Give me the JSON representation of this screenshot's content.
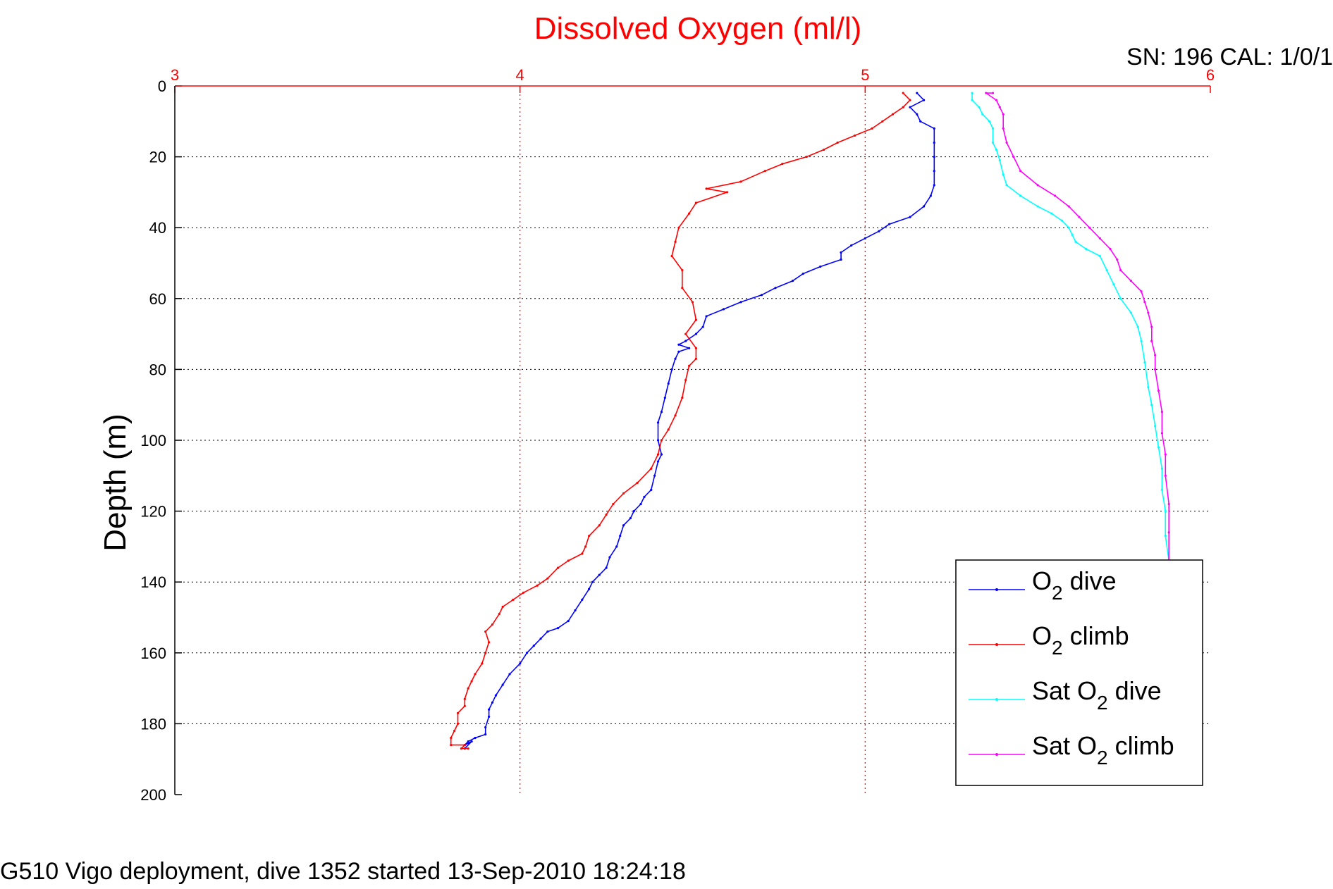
{
  "chart_data": {
    "type": "line",
    "title": "Dissolved Oxygen (ml/l)",
    "subtitle": "SN: 196  CAL: 1/0/1",
    "footer": "G510 Vigo deployment, dive 1352 started 13-Sep-2010 18:24:18",
    "xlabel": "",
    "ylabel": "Depth (m)",
    "xlim": [
      3,
      6
    ],
    "ylim": [
      0,
      200
    ],
    "y_reversed": true,
    "x_axis_position": "top",
    "x_ticks": [
      "3",
      "4",
      "5",
      "6"
    ],
    "y_ticks": [
      "0",
      "20",
      "40",
      "60",
      "80",
      "100",
      "120",
      "140",
      "160",
      "180",
      "200"
    ],
    "grid": true,
    "legend_position": "bottom-right",
    "x_axis_color": "#ff0000",
    "series": [
      {
        "name": "O₂ dive",
        "color": "#0000ff",
        "points": [
          [
            5.15,
            2
          ],
          [
            5.17,
            4
          ],
          [
            5.13,
            6
          ],
          [
            5.15,
            8
          ],
          [
            5.16,
            10
          ],
          [
            5.2,
            12
          ],
          [
            5.2,
            16
          ],
          [
            5.2,
            20
          ],
          [
            5.2,
            24
          ],
          [
            5.2,
            28
          ],
          [
            5.19,
            31
          ],
          [
            5.17,
            34
          ],
          [
            5.13,
            37
          ],
          [
            5.07,
            39
          ],
          [
            5.04,
            41
          ],
          [
            5.0,
            43
          ],
          [
            4.96,
            45
          ],
          [
            4.93,
            47
          ],
          [
            4.93,
            49
          ],
          [
            4.87,
            51
          ],
          [
            4.82,
            53
          ],
          [
            4.79,
            55
          ],
          [
            4.74,
            57
          ],
          [
            4.7,
            59
          ],
          [
            4.64,
            61
          ],
          [
            4.59,
            63
          ],
          [
            4.54,
            65
          ],
          [
            4.53,
            68
          ],
          [
            4.51,
            70
          ],
          [
            4.48,
            72
          ],
          [
            4.46,
            73
          ],
          [
            4.49,
            74
          ],
          [
            4.46,
            75
          ],
          [
            4.45,
            77
          ],
          [
            4.44,
            80
          ],
          [
            4.43,
            84
          ],
          [
            4.42,
            88
          ],
          [
            4.41,
            92
          ],
          [
            4.4,
            95
          ],
          [
            4.4,
            100
          ],
          [
            4.41,
            104
          ],
          [
            4.4,
            106
          ],
          [
            4.39,
            110
          ],
          [
            4.38,
            114
          ],
          [
            4.36,
            116
          ],
          [
            4.35,
            118
          ],
          [
            4.33,
            120
          ],
          [
            4.32,
            122
          ],
          [
            4.3,
            124
          ],
          [
            4.29,
            127
          ],
          [
            4.28,
            130
          ],
          [
            4.26,
            133
          ],
          [
            4.25,
            136
          ],
          [
            4.23,
            138
          ],
          [
            4.21,
            140
          ],
          [
            4.2,
            142
          ],
          [
            4.18,
            145
          ],
          [
            4.16,
            148
          ],
          [
            4.14,
            151
          ],
          [
            4.11,
            153
          ],
          [
            4.08,
            154
          ],
          [
            4.06,
            156
          ],
          [
            4.04,
            158
          ],
          [
            4.02,
            160
          ],
          [
            4.0,
            163
          ],
          [
            3.97,
            166
          ],
          [
            3.95,
            169
          ],
          [
            3.93,
            172
          ],
          [
            3.92,
            174
          ],
          [
            3.91,
            176
          ],
          [
            3.91,
            178
          ],
          [
            3.9,
            181
          ],
          [
            3.9,
            183
          ],
          [
            3.87,
            184
          ],
          [
            3.85,
            185
          ],
          [
            3.84,
            186
          ],
          [
            3.86,
            185
          ],
          [
            3.84,
            187
          ]
        ]
      },
      {
        "name": "O₂ climb",
        "color": "#ff0000",
        "points": [
          [
            5.11,
            2
          ],
          [
            5.13,
            4
          ],
          [
            5.11,
            6
          ],
          [
            5.08,
            8
          ],
          [
            5.05,
            10
          ],
          [
            5.02,
            12
          ],
          [
            4.97,
            14
          ],
          [
            4.92,
            16
          ],
          [
            4.88,
            18
          ],
          [
            4.83,
            20
          ],
          [
            4.76,
            22
          ],
          [
            4.71,
            24
          ],
          [
            4.64,
            27
          ],
          [
            4.54,
            29
          ],
          [
            4.6,
            30
          ],
          [
            4.51,
            33
          ],
          [
            4.49,
            36
          ],
          [
            4.46,
            40
          ],
          [
            4.45,
            44
          ],
          [
            4.44,
            48
          ],
          [
            4.47,
            52
          ],
          [
            4.47,
            57
          ],
          [
            4.5,
            61
          ],
          [
            4.51,
            66
          ],
          [
            4.48,
            70
          ],
          [
            4.51,
            74
          ],
          [
            4.51,
            77
          ],
          [
            4.49,
            79
          ],
          [
            4.48,
            83
          ],
          [
            4.47,
            88
          ],
          [
            4.45,
            93
          ],
          [
            4.43,
            97
          ],
          [
            4.41,
            100
          ],
          [
            4.4,
            104
          ],
          [
            4.38,
            108
          ],
          [
            4.34,
            112
          ],
          [
            4.3,
            115
          ],
          [
            4.27,
            118
          ],
          [
            4.25,
            121
          ],
          [
            4.23,
            124
          ],
          [
            4.2,
            127
          ],
          [
            4.19,
            130
          ],
          [
            4.18,
            132
          ],
          [
            4.14,
            134
          ],
          [
            4.11,
            136
          ],
          [
            4.08,
            139
          ],
          [
            4.05,
            141
          ],
          [
            4.01,
            143
          ],
          [
            3.98,
            145
          ],
          [
            3.95,
            147
          ],
          [
            3.94,
            149
          ],
          [
            3.92,
            152
          ],
          [
            3.9,
            154
          ],
          [
            3.91,
            157
          ],
          [
            3.9,
            160
          ],
          [
            3.89,
            163
          ],
          [
            3.87,
            166
          ],
          [
            3.86,
            168
          ],
          [
            3.85,
            170
          ],
          [
            3.84,
            173
          ],
          [
            3.84,
            175
          ],
          [
            3.82,
            177
          ],
          [
            3.82,
            180
          ],
          [
            3.81,
            182
          ],
          [
            3.8,
            184
          ],
          [
            3.8,
            186
          ],
          [
            3.84,
            186
          ],
          [
            3.83,
            187
          ],
          [
            3.85,
            187
          ]
        ]
      },
      {
        "name": "Sat O₂ dive",
        "color": "#00ffff",
        "points": [
          [
            5.31,
            2
          ],
          [
            5.31,
            4
          ],
          [
            5.33,
            6
          ],
          [
            5.34,
            8
          ],
          [
            5.36,
            10
          ],
          [
            5.37,
            12
          ],
          [
            5.37,
            16
          ],
          [
            5.38,
            18
          ],
          [
            5.39,
            21
          ],
          [
            5.4,
            25
          ],
          [
            5.41,
            28
          ],
          [
            5.45,
            31
          ],
          [
            5.5,
            34
          ],
          [
            5.54,
            36
          ],
          [
            5.57,
            38
          ],
          [
            5.59,
            40
          ],
          [
            5.6,
            42
          ],
          [
            5.61,
            44
          ],
          [
            5.64,
            46
          ],
          [
            5.68,
            48
          ],
          [
            5.7,
            52
          ],
          [
            5.72,
            56
          ],
          [
            5.74,
            60
          ],
          [
            5.77,
            64
          ],
          [
            5.79,
            68
          ],
          [
            5.8,
            72
          ],
          [
            5.81,
            78
          ],
          [
            5.82,
            85
          ],
          [
            5.83,
            90
          ],
          [
            5.84,
            96
          ],
          [
            5.85,
            102
          ],
          [
            5.86,
            108
          ],
          [
            5.86,
            114
          ],
          [
            5.87,
            120
          ],
          [
            5.87,
            127
          ],
          [
            5.88,
            134
          ],
          [
            5.88,
            140
          ]
        ]
      },
      {
        "name": "Sat O₂ climb",
        "color": "#ff00ff",
        "points": [
          [
            5.37,
            2
          ],
          [
            5.35,
            2
          ],
          [
            5.38,
            4
          ],
          [
            5.39,
            6
          ],
          [
            5.4,
            8
          ],
          [
            5.4,
            12
          ],
          [
            5.41,
            16
          ],
          [
            5.43,
            20
          ],
          [
            5.45,
            24
          ],
          [
            5.5,
            28
          ],
          [
            5.55,
            31
          ],
          [
            5.59,
            34
          ],
          [
            5.62,
            37
          ],
          [
            5.65,
            40
          ],
          [
            5.68,
            43
          ],
          [
            5.71,
            46
          ],
          [
            5.73,
            49
          ],
          [
            5.74,
            52
          ],
          [
            5.77,
            55
          ],
          [
            5.8,
            58
          ],
          [
            5.81,
            61
          ],
          [
            5.82,
            64
          ],
          [
            5.83,
            68
          ],
          [
            5.83,
            72
          ],
          [
            5.84,
            76
          ],
          [
            5.84,
            80
          ],
          [
            5.85,
            86
          ],
          [
            5.86,
            92
          ],
          [
            5.86,
            98
          ],
          [
            5.87,
            104
          ],
          [
            5.87,
            110
          ],
          [
            5.88,
            118
          ],
          [
            5.88,
            126
          ],
          [
            5.88,
            134
          ],
          [
            5.88,
            140
          ]
        ]
      }
    ]
  }
}
